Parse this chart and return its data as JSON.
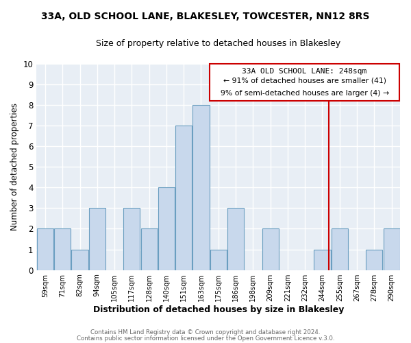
{
  "title": "33A, OLD SCHOOL LANE, BLAKESLEY, TOWCESTER, NN12 8RS",
  "subtitle": "Size of property relative to detached houses in Blakesley",
  "xlabel": "Distribution of detached houses by size in Blakesley",
  "ylabel": "Number of detached properties",
  "bar_labels": [
    "59sqm",
    "71sqm",
    "82sqm",
    "94sqm",
    "105sqm",
    "117sqm",
    "128sqm",
    "140sqm",
    "151sqm",
    "163sqm",
    "175sqm",
    "186sqm",
    "198sqm",
    "209sqm",
    "221sqm",
    "232sqm",
    "244sqm",
    "255sqm",
    "267sqm",
    "278sqm",
    "290sqm"
  ],
  "bar_values": [
    2,
    2,
    1,
    3,
    0,
    3,
    2,
    4,
    7,
    8,
    1,
    3,
    0,
    2,
    0,
    0,
    1,
    2,
    0,
    1,
    2
  ],
  "bar_color": "#c8d8ec",
  "bar_edge_color": "#6a9ec0",
  "grid_color": "#c0cfe0",
  "vline_color": "#cc0000",
  "annotation_box_edge": "#cc0000",
  "marker_label": "33A OLD SCHOOL LANE: 248sqm",
  "annotation_line1": "← 91% of detached houses are smaller (41)",
  "annotation_line2": "9% of semi-detached houses are larger (4) →",
  "footer_line1": "Contains HM Land Registry data © Crown copyright and database right 2024.",
  "footer_line2": "Contains public sector information licensed under the Open Government Licence v.3.0.",
  "ylim": [
    0,
    10
  ],
  "yticks": [
    0,
    1,
    2,
    3,
    4,
    5,
    6,
    7,
    8,
    9,
    10
  ],
  "bg_color": "#e8eef5"
}
